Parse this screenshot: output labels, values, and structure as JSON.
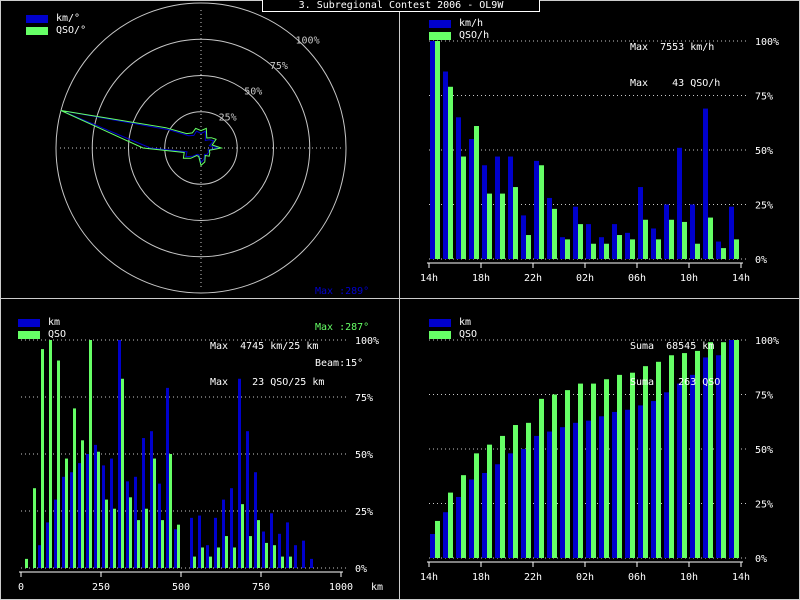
{
  "window": {
    "title": "3. Subregional Contest 2006 - OL9W"
  },
  "colors": {
    "km": "#0000cc",
    "qso": "#66ff66",
    "grid": "#c8c8c8",
    "text": "#ffffff",
    "background": "#000000"
  },
  "polar": {
    "legend": [
      "km/°",
      "QSO/°"
    ],
    "ring_labels": [
      "25%",
      "50%",
      "75%",
      "100%"
    ],
    "info": [
      "Max :289°",
      "Max :287°",
      "Beam:15°"
    ]
  },
  "hourly": {
    "legend": [
      "km/h",
      "QSO/h"
    ],
    "stats": [
      "Max  7553 km/h",
      "Max    43 QSO/h"
    ]
  },
  "distance": {
    "legend": [
      "km",
      "QSO"
    ],
    "stats": [
      "Max  4745 km/25 km",
      "Max    23 QSO/25 km"
    ]
  },
  "cumulative": {
    "legend": [
      "km",
      "QSO"
    ],
    "stats": [
      "Suma  68545 km",
      "Suma    263 QSO"
    ]
  },
  "chart_data": [
    {
      "type": "polar",
      "title": "3. Subregional Contest 2006 - OL9W",
      "series": [
        {
          "name": "km/°",
          "angles_deg": [
            0,
            15,
            30,
            45,
            60,
            75,
            90,
            105,
            120,
            135,
            150,
            165,
            180,
            195,
            210,
            225,
            240,
            255,
            270,
            285,
            300,
            315,
            330,
            345
          ],
          "values_pct": [
            10,
            12,
            6,
            8,
            10,
            6,
            12,
            5,
            6,
            6,
            5,
            8,
            10,
            5,
            5,
            8,
            12,
            10,
            35,
            100,
            25,
            12,
            10,
            12
          ]
        },
        {
          "name": "QSO/°",
          "angles_deg": [
            0,
            15,
            30,
            45,
            60,
            75,
            90,
            105,
            120,
            135,
            150,
            165,
            180,
            195,
            210,
            225,
            240,
            255,
            270,
            285,
            300,
            315,
            330,
            345
          ],
          "values_pct": [
            12,
            14,
            8,
            10,
            12,
            8,
            14,
            6,
            7,
            8,
            6,
            10,
            12,
            6,
            6,
            10,
            14,
            12,
            40,
            100,
            28,
            14,
            12,
            14
          ]
        }
      ],
      "rlim": [
        0,
        100
      ]
    },
    {
      "type": "bar",
      "categories": [
        "14h",
        "15h",
        "16h",
        "17h",
        "18h",
        "19h",
        "20h",
        "21h",
        "22h",
        "23h",
        "00h",
        "01h",
        "02h",
        "03h",
        "04h",
        "05h",
        "06h",
        "07h",
        "08h",
        "09h",
        "10h",
        "11h",
        "12h",
        "13h"
      ],
      "tick_labels": [
        "14h",
        "18h",
        "22h",
        "02h",
        "06h",
        "10h",
        "14h"
      ],
      "ylabel_ticks": [
        "0%",
        "25%",
        "50%",
        "75%",
        "100%"
      ],
      "series": [
        {
          "name": "km/h",
          "values": [
            100,
            86,
            65,
            55,
            43,
            47,
            47,
            20,
            45,
            28,
            10,
            24,
            16,
            10,
            16,
            12,
            33,
            14,
            25,
            51,
            25,
            69,
            8,
            24
          ]
        },
        {
          "name": "QSO/h",
          "values": [
            100,
            79,
            47,
            61,
            30,
            30,
            33,
            11,
            43,
            23,
            9,
            16,
            7,
            7,
            11,
            9,
            18,
            9,
            18,
            17,
            7,
            19,
            5,
            9
          ]
        }
      ],
      "ylim": [
        0,
        100
      ]
    },
    {
      "type": "bar",
      "x": [
        12.5,
        37.5,
        62.5,
        87.5,
        112.5,
        137.5,
        162.5,
        187.5,
        212.5,
        237.5,
        262.5,
        287.5,
        312.5,
        337.5,
        362.5,
        387.5,
        412.5,
        437.5,
        462.5,
        487.5,
        512.5,
        537.5,
        562.5,
        587.5,
        612.5,
        637.5,
        662.5,
        687.5,
        712.5,
        737.5,
        762.5,
        787.5,
        812.5,
        837.5,
        862.5,
        887.5,
        912.5,
        937.5
      ],
      "xlabel": "km",
      "tick_labels": [
        "0",
        "250",
        "500",
        "750",
        "1000"
      ],
      "ylabel_ticks": [
        "0%",
        "25%",
        "50%",
        "75%",
        "100%"
      ],
      "series": [
        {
          "name": "km",
          "values": [
            0,
            0,
            10,
            20,
            30,
            40,
            42,
            46,
            50,
            54,
            45,
            48,
            100,
            38,
            40,
            57,
            60,
            37,
            79,
            17,
            0,
            22,
            23,
            10,
            22,
            30,
            35,
            83,
            60,
            42,
            16,
            24,
            15,
            20,
            10,
            12,
            4,
            0
          ]
        },
        {
          "name": "QSO",
          "values": [
            4,
            35,
            96,
            100,
            91,
            48,
            70,
            56,
            100,
            51,
            30,
            26,
            83,
            31,
            21,
            26,
            48,
            21,
            50,
            19,
            0,
            5,
            9,
            5,
            9,
            14,
            9,
            28,
            14,
            21,
            11,
            10,
            5,
            5,
            0,
            0,
            0,
            0
          ]
        }
      ],
      "xlim": [
        0,
        1000
      ],
      "ylim": [
        0,
        100
      ]
    },
    {
      "type": "bar",
      "categories": [
        "14h",
        "15h",
        "16h",
        "17h",
        "18h",
        "19h",
        "20h",
        "21h",
        "22h",
        "23h",
        "00h",
        "01h",
        "02h",
        "03h",
        "04h",
        "05h",
        "06h",
        "07h",
        "08h",
        "09h",
        "10h",
        "11h",
        "12h",
        "13h"
      ],
      "tick_labels": [
        "14h",
        "18h",
        "22h",
        "02h",
        "06h",
        "10h",
        "14h"
      ],
      "ylabel_ticks": [
        "0%",
        "25%",
        "50%",
        "75%",
        "100%"
      ],
      "series": [
        {
          "name": "km",
          "values": [
            11,
            21,
            28,
            36,
            39,
            43,
            48,
            50,
            56,
            58,
            60,
            62,
            63,
            65,
            67,
            68,
            70,
            72,
            76,
            80,
            84,
            92,
            93,
            100
          ]
        },
        {
          "name": "QSO",
          "values": [
            17,
            30,
            38,
            48,
            52,
            56,
            61,
            62,
            73,
            75,
            77,
            80,
            80,
            82,
            84,
            85,
            88,
            90,
            93,
            94,
            95,
            99,
            99,
            100
          ]
        }
      ],
      "ylim": [
        0,
        100
      ]
    }
  ]
}
